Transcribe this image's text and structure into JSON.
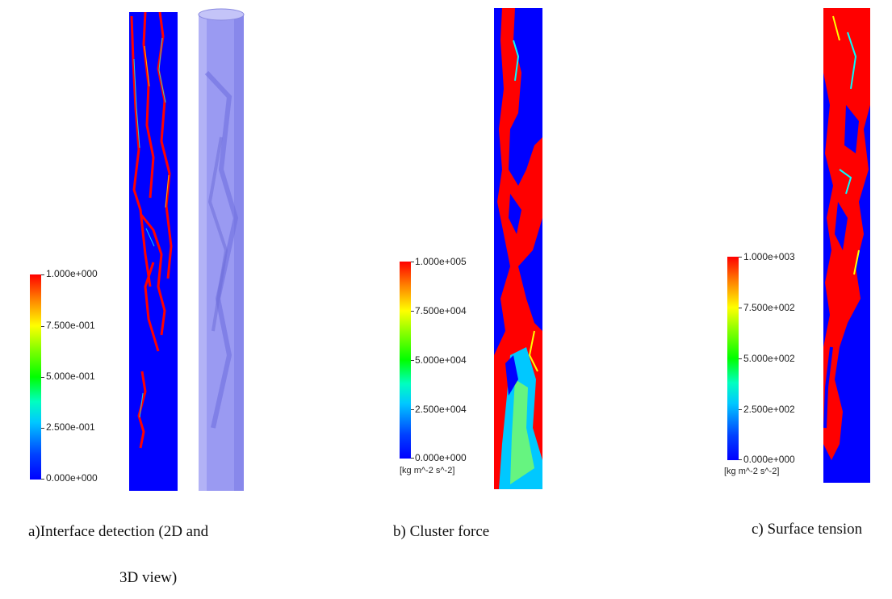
{
  "panel_a": {
    "colorbar_ticks": [
      "1.000e+000",
      "7.500e-001",
      "5.000e-001",
      "2.500e-001",
      "0.000e+000"
    ],
    "caption_line1": "a)Interface detection (2D and",
    "caption_line2": "3D view)"
  },
  "panel_b": {
    "colorbar_ticks": [
      "1.000e+005",
      "7.500e+004",
      "5.000e+004",
      "2.500e+004",
      "0.000e+000"
    ],
    "units": "[kg m^-2 s^-2]",
    "caption": "b) Cluster force"
  },
  "panel_c": {
    "colorbar_ticks": [
      "1.000e+003",
      "7.500e+002",
      "5.000e+002",
      "2.500e+002",
      "0.000e+000"
    ],
    "units": "[kg m^-2 s^-2]",
    "caption": "c) Surface tension"
  },
  "colors": {
    "field_low": "#0000ff",
    "field_high": "#ff0000",
    "pipe_3d": "#8c8cf0"
  }
}
